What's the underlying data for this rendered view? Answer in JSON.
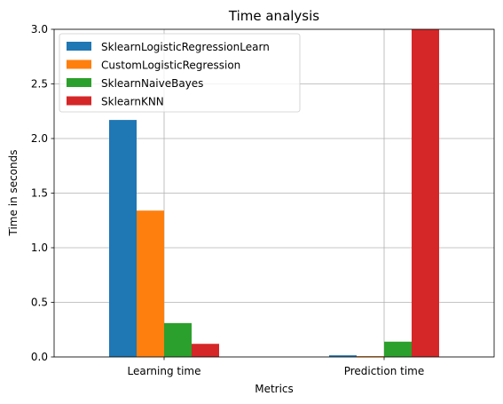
{
  "chart_data": {
    "type": "bar",
    "title": "Time analysis",
    "xlabel": "Metrics",
    "ylabel": "Time in seconds",
    "categories": [
      "Learning time",
      "Prediction time"
    ],
    "ylim": [
      0,
      3.0
    ],
    "yticks": [
      0.0,
      0.5,
      1.0,
      1.5,
      2.0,
      2.5,
      3.0
    ],
    "ytick_labels": [
      "0.0",
      "0.5",
      "1.0",
      "1.5",
      "2.0",
      "2.5",
      "3.0"
    ],
    "grid": true,
    "legend_position": "upper-left",
    "series": [
      {
        "name": "SklearnLogisticRegressionLearn",
        "color": "#1f77b4",
        "values": [
          2.17,
          0.015
        ]
      },
      {
        "name": "CustomLogisticRegression",
        "color": "#ff7f0e",
        "values": [
          1.34,
          0.008
        ]
      },
      {
        "name": "SklearnNaiveBayes",
        "color": "#2ca02c",
        "values": [
          0.31,
          0.14
        ]
      },
      {
        "name": "SklearnKNN",
        "color": "#d62728",
        "values": [
          0.12,
          3.0
        ]
      }
    ]
  }
}
